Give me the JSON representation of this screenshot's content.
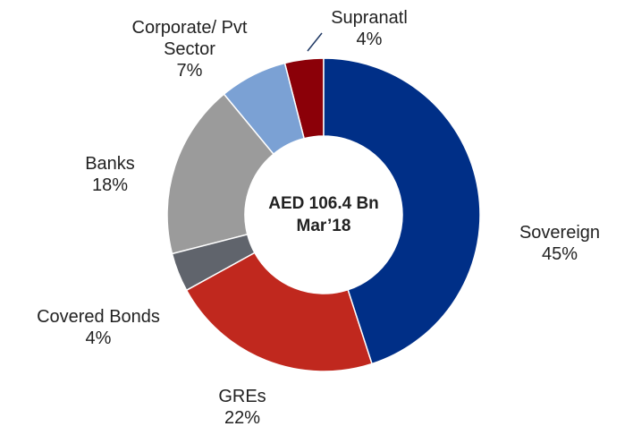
{
  "chart_data": {
    "type": "donut",
    "center_text": [
      "AED 106.4 Bn",
      "Mar’18"
    ],
    "categories": [
      "Sovereign",
      "GREs",
      "Covered Bonds",
      "Banks",
      "Corporate/ Pvt Sector",
      "Supranatl"
    ],
    "values": [
      45,
      22,
      4,
      18,
      7,
      4
    ],
    "value_labels": [
      "45%",
      "22%",
      "4%",
      "18%",
      "7%",
      "4%"
    ],
    "colors": [
      "#002f87",
      "#c0281e",
      "#60646c",
      "#9b9b9b",
      "#7ba1d4",
      "#8b0008"
    ]
  }
}
